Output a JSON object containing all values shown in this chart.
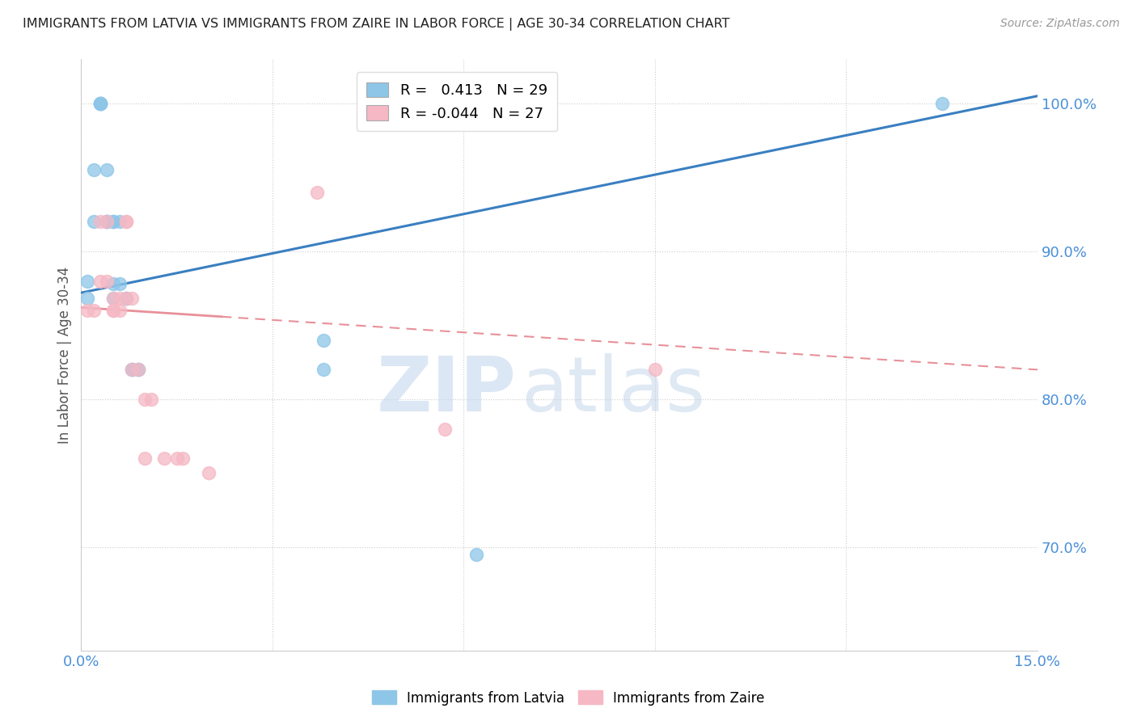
{
  "title": "IMMIGRANTS FROM LATVIA VS IMMIGRANTS FROM ZAIRE IN LABOR FORCE | AGE 30-34 CORRELATION CHART",
  "source_text": "Source: ZipAtlas.com",
  "ylabel": "In Labor Force | Age 30-34",
  "xlim": [
    0.0,
    0.15
  ],
  "ylim": [
    0.63,
    1.03
  ],
  "xticks": [
    0.0,
    0.03,
    0.06,
    0.09,
    0.12,
    0.15
  ],
  "xticklabels": [
    "0.0%",
    "",
    "",
    "",
    "",
    "15.0%"
  ],
  "yticks": [
    0.7,
    0.8,
    0.9,
    1.0
  ],
  "yticklabels": [
    "70.0%",
    "80.0%",
    "90.0%",
    "100.0%"
  ],
  "grid_color": "#cccccc",
  "background_color": "#ffffff",
  "latvia_color": "#8ec6e8",
  "zaire_color": "#f5b8c4",
  "latvia_line_color": "#3a7fc1",
  "zaire_line_color": "#e8909a",
  "r_latvia": 0.413,
  "n_latvia": 29,
  "r_zaire": -0.044,
  "n_zaire": 27,
  "watermark_zip": "ZIP",
  "watermark_atlas": "atlas",
  "latvia_x": [
    0.001,
    0.001,
    0.002,
    0.002,
    0.003,
    0.003,
    0.003,
    0.003,
    0.003,
    0.004,
    0.004,
    0.004,
    0.004,
    0.005,
    0.005,
    0.005,
    0.005,
    0.006,
    0.006,
    0.007,
    0.007,
    0.008,
    0.008,
    0.009,
    0.009,
    0.038,
    0.038,
    0.062,
    0.135
  ],
  "latvia_y": [
    0.868,
    0.88,
    0.955,
    0.92,
    1.0,
    1.0,
    1.0,
    1.0,
    1.0,
    0.92,
    0.92,
    0.92,
    0.955,
    0.868,
    0.878,
    0.92,
    0.92,
    0.92,
    0.878,
    0.868,
    0.868,
    0.82,
    0.82,
    0.82,
    0.82,
    0.82,
    0.84,
    0.695,
    1.0
  ],
  "zaire_x": [
    0.001,
    0.002,
    0.003,
    0.003,
    0.004,
    0.004,
    0.005,
    0.005,
    0.005,
    0.006,
    0.006,
    0.007,
    0.007,
    0.007,
    0.008,
    0.008,
    0.009,
    0.01,
    0.01,
    0.011,
    0.013,
    0.015,
    0.016,
    0.02,
    0.037,
    0.057,
    0.09
  ],
  "zaire_y": [
    0.86,
    0.86,
    0.92,
    0.88,
    0.92,
    0.88,
    0.868,
    0.86,
    0.86,
    0.868,
    0.86,
    0.92,
    0.92,
    0.868,
    0.868,
    0.82,
    0.82,
    0.8,
    0.76,
    0.8,
    0.76,
    0.76,
    0.76,
    0.75,
    0.94,
    0.78,
    0.82
  ]
}
